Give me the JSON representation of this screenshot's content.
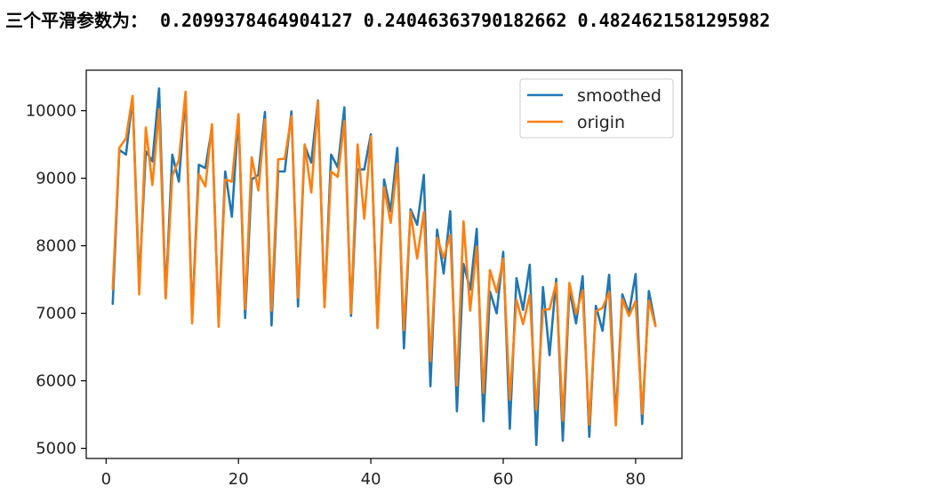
{
  "output": {
    "label": "三个平滑参数为：",
    "values": "0.2099378464904127 0.24046363790182662 0.4824621581295982"
  },
  "chart_data": {
    "type": "line",
    "title": "",
    "xlabel": "",
    "ylabel": "",
    "xlim": [
      -3,
      87
    ],
    "ylim": [
      4850,
      10600
    ],
    "xticks": [
      0,
      20,
      40,
      60,
      80
    ],
    "yticks": [
      5000,
      6000,
      7000,
      8000,
      9000,
      10000
    ],
    "legend": {
      "position": "upper-right"
    },
    "grid": false,
    "series": [
      {
        "name": "smoothed",
        "color": "#1f77b4",
        "x": [
          1,
          2,
          3,
          4,
          5,
          6,
          7,
          8,
          9,
          10,
          11,
          12,
          13,
          14,
          15,
          16,
          17,
          18,
          19,
          20,
          21,
          22,
          23,
          24,
          25,
          26,
          27,
          28,
          29,
          30,
          31,
          32,
          33,
          34,
          35,
          36,
          37,
          38,
          39,
          40,
          41,
          42,
          43,
          44,
          45,
          46,
          47,
          48,
          49,
          50,
          51,
          52,
          53,
          54,
          55,
          56,
          57,
          58,
          59,
          60,
          61,
          62,
          63,
          64,
          65,
          66,
          67,
          68,
          69,
          70,
          71,
          72,
          73,
          74,
          75,
          76,
          77,
          78,
          79,
          80,
          81,
          82,
          83
        ],
        "values": [
          7140,
          9420,
          9350,
          10200,
          7450,
          9400,
          9250,
          10330,
          7250,
          9350,
          8950,
          10250,
          6920,
          9200,
          9150,
          9750,
          6870,
          9100,
          8430,
          9930,
          6930,
          8980,
          9050,
          9980,
          6820,
          9100,
          9100,
          9990,
          7100,
          9480,
          9230,
          10150,
          7110,
          9350,
          9160,
          10050,
          6960,
          9130,
          9130,
          9650,
          6810,
          8980,
          8510,
          9450,
          6480,
          8540,
          8310,
          9050,
          5920,
          8240,
          7590,
          8510,
          5550,
          7730,
          7350,
          8250,
          5400,
          7320,
          7000,
          7910,
          5290,
          7520,
          7050,
          7720,
          5050,
          7390,
          6380,
          7510,
          5110,
          7360,
          6850,
          7550,
          5170,
          7110,
          6740,
          7570,
          5420,
          7280,
          7000,
          7580,
          5360,
          7330,
          6820
        ]
      },
      {
        "name": "origin",
        "color": "#ff7f0e",
        "x": [
          1,
          2,
          3,
          4,
          5,
          6,
          7,
          8,
          9,
          10,
          11,
          12,
          13,
          14,
          15,
          16,
          17,
          18,
          19,
          20,
          21,
          22,
          23,
          24,
          25,
          26,
          27,
          28,
          29,
          30,
          31,
          32,
          33,
          34,
          35,
          36,
          37,
          38,
          39,
          40,
          41,
          42,
          43,
          44,
          45,
          46,
          47,
          48,
          49,
          50,
          51,
          52,
          53,
          54,
          55,
          56,
          57,
          58,
          59,
          60,
          61,
          62,
          63,
          64,
          65,
          66,
          67,
          68,
          69,
          70,
          71,
          72,
          73,
          74,
          75,
          76,
          77,
          78,
          79,
          80,
          81,
          82,
          83
        ],
        "values": [
          7360,
          9450,
          9590,
          10220,
          7280,
          9750,
          8900,
          10020,
          7220,
          9040,
          9270,
          10280,
          6850,
          9060,
          8880,
          9800,
          6800,
          8980,
          8950,
          9950,
          7060,
          9310,
          8820,
          9870,
          7040,
          9280,
          9290,
          9920,
          7230,
          9500,
          8790,
          10140,
          7090,
          9100,
          9020,
          9850,
          7000,
          9500,
          8400,
          9620,
          6780,
          8870,
          8340,
          9220,
          6750,
          8500,
          7810,
          8500,
          6290,
          8120,
          7820,
          8160,
          5930,
          8360,
          7040,
          7990,
          5820,
          7640,
          7310,
          7810,
          5720,
          7200,
          6840,
          7270,
          5570,
          7050,
          7060,
          7450,
          5410,
          7450,
          6990,
          7340,
          5350,
          7030,
          7080,
          7310,
          5340,
          7210,
          6960,
          7180,
          5510,
          7190,
          6810
        ]
      }
    ]
  }
}
